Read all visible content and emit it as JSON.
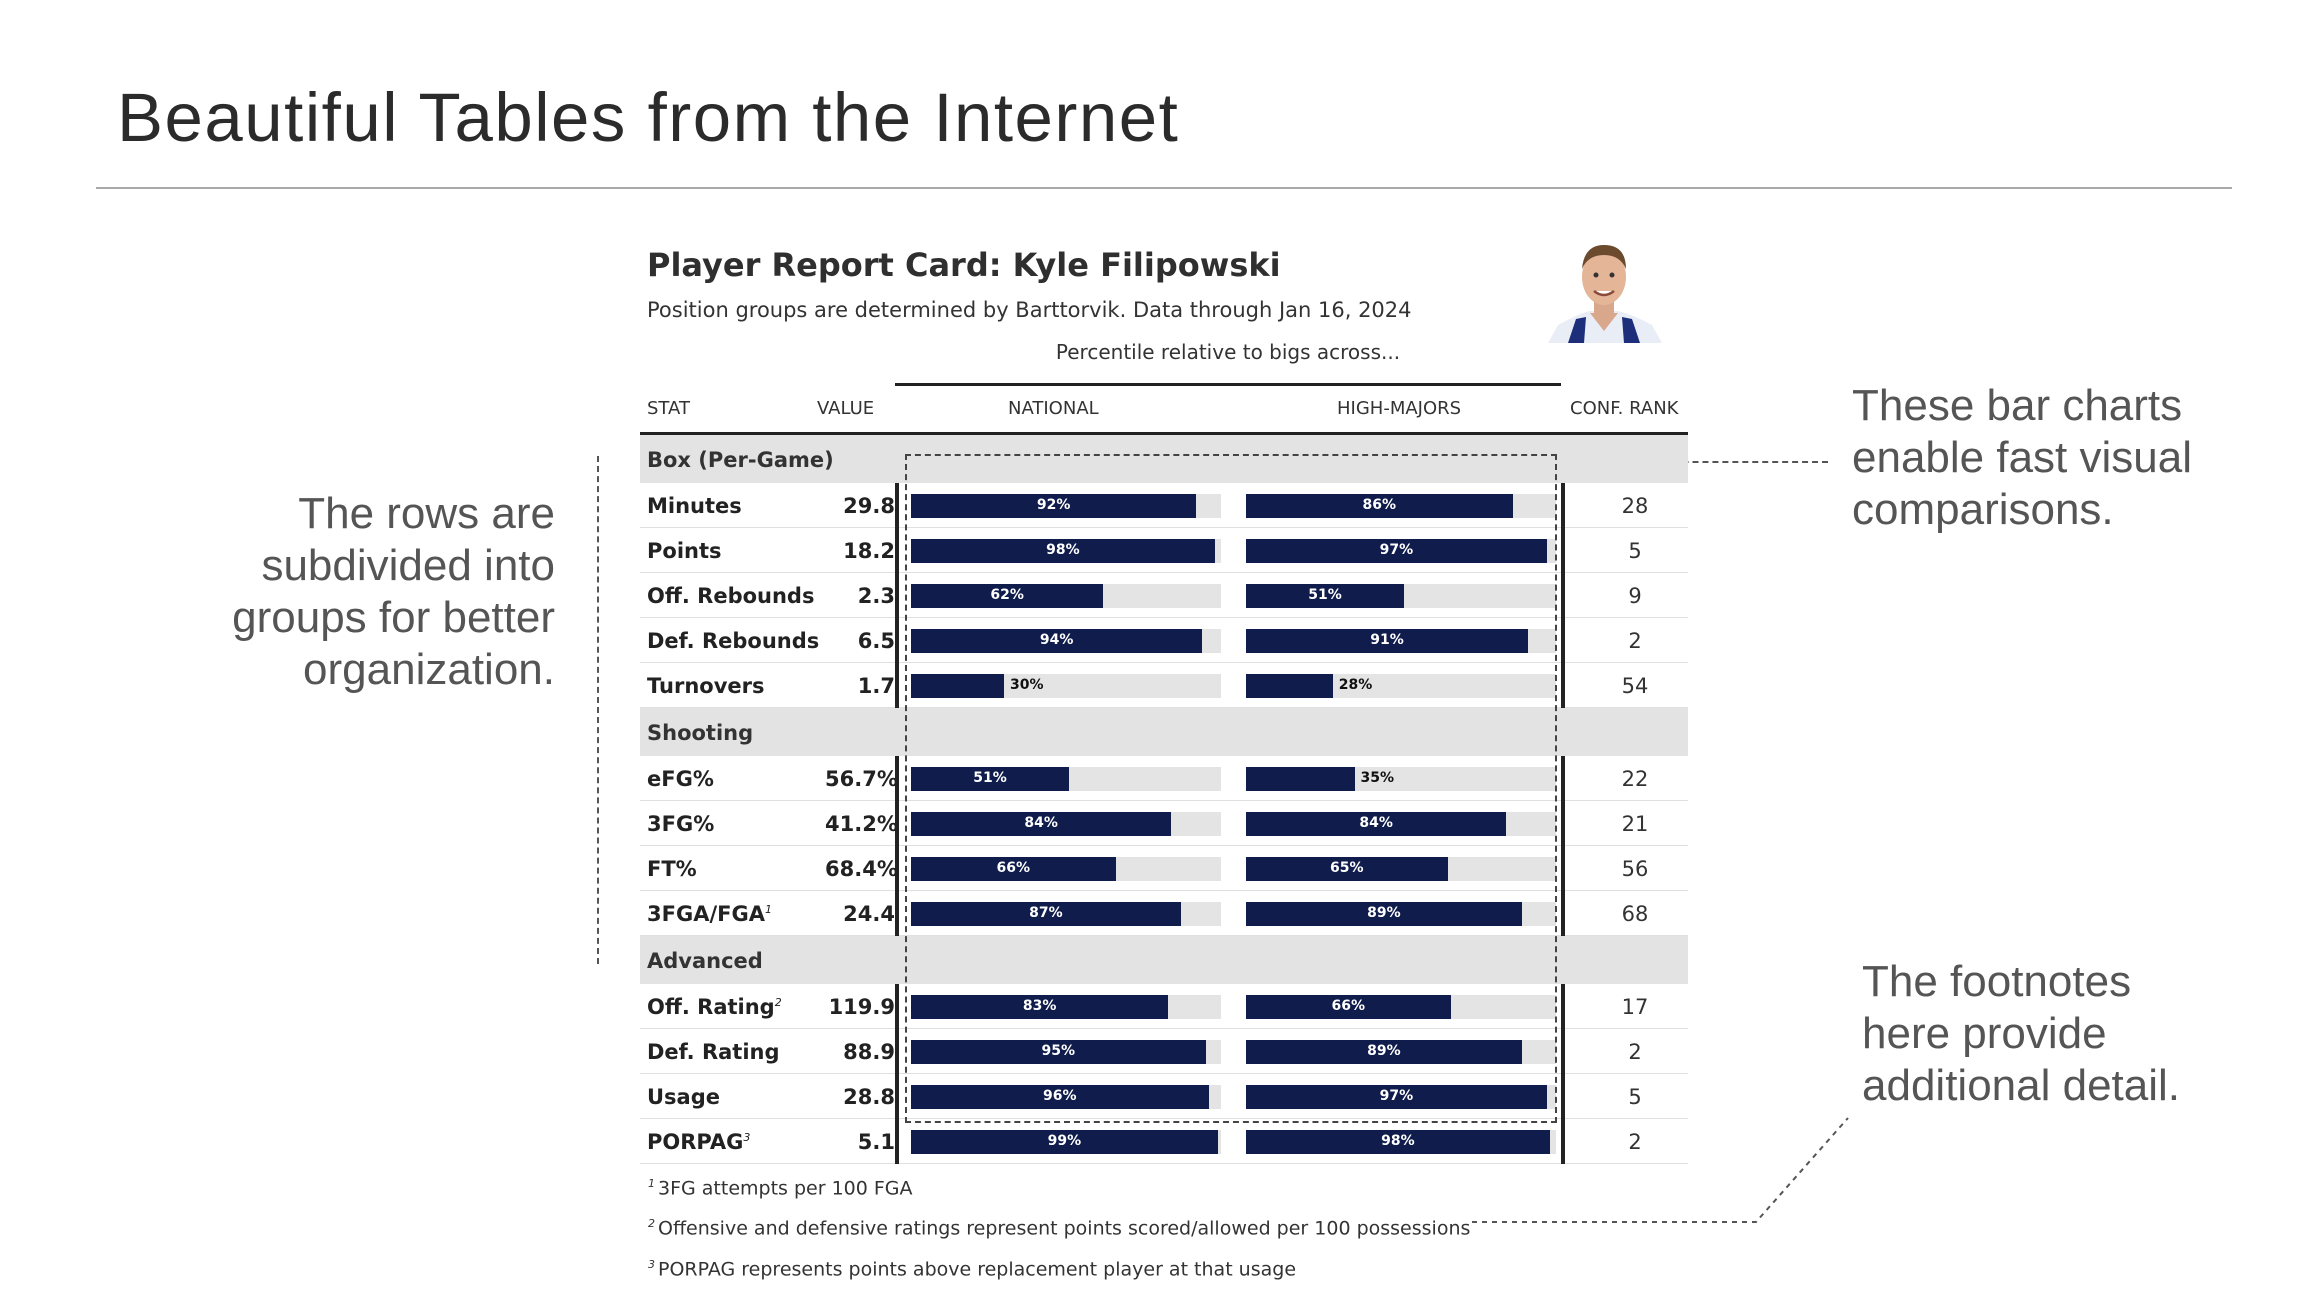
{
  "slide": {
    "title": "Beautiful Tables from the Internet"
  },
  "annotations": {
    "rows": [
      "The rows are",
      "subdivided into",
      "groups for better",
      "organization."
    ],
    "bars": [
      "These bar charts",
      "enable fast visual",
      "comparisons."
    ],
    "footnotes": [
      "The footnotes",
      "here provide",
      "additional detail."
    ]
  },
  "report": {
    "title": "Player Report Card: Kyle Filipowski",
    "subtitle": "Position groups are determined by Barttorvik. Data through Jan 16, 2024",
    "spanner": "Percentile relative to bigs across...",
    "headers": {
      "stat": "STAT",
      "value": "VALUE",
      "national": "NATIONAL",
      "high_majors": "HIGH-MAJORS",
      "conf_rank": "CONF. RANK"
    },
    "groups": [
      {
        "name": "Box (Per-Game)",
        "rows": [
          {
            "stat": "Minutes",
            "sup": "",
            "value": "29.8",
            "national": 92,
            "high_majors": 86,
            "conf_rank": "28"
          },
          {
            "stat": "Points",
            "sup": "",
            "value": "18.2",
            "national": 98,
            "high_majors": 97,
            "conf_rank": "5"
          },
          {
            "stat": "Off. Rebounds",
            "sup": "",
            "value": "2.3",
            "national": 62,
            "high_majors": 51,
            "conf_rank": "9"
          },
          {
            "stat": "Def. Rebounds",
            "sup": "",
            "value": "6.5",
            "national": 94,
            "high_majors": 91,
            "conf_rank": "2"
          },
          {
            "stat": "Turnovers",
            "sup": "",
            "value": "1.7",
            "national": 30,
            "high_majors": 28,
            "conf_rank": "54"
          }
        ]
      },
      {
        "name": "Shooting",
        "rows": [
          {
            "stat": "eFG%",
            "sup": "",
            "value": "56.7%",
            "national": 51,
            "high_majors": 35,
            "conf_rank": "22"
          },
          {
            "stat": "3FG%",
            "sup": "",
            "value": "41.2%",
            "national": 84,
            "high_majors": 84,
            "conf_rank": "21"
          },
          {
            "stat": "FT%",
            "sup": "",
            "value": "68.4%",
            "national": 66,
            "high_majors": 65,
            "conf_rank": "56"
          },
          {
            "stat": "3FGA/FGA",
            "sup": "1",
            "value": "24.4",
            "national": 87,
            "high_majors": 89,
            "conf_rank": "68"
          }
        ]
      },
      {
        "name": "Advanced",
        "rows": [
          {
            "stat": "Off. Rating",
            "sup": "2",
            "value": "119.9",
            "national": 83,
            "high_majors": 66,
            "conf_rank": "17"
          },
          {
            "stat": "Def. Rating",
            "sup": "",
            "value": "88.9",
            "national": 95,
            "high_majors": 89,
            "conf_rank": "2"
          },
          {
            "stat": "Usage",
            "sup": "",
            "value": "28.8",
            "national": 96,
            "high_majors": 97,
            "conf_rank": "5"
          },
          {
            "stat": "PORPAG",
            "sup": "3",
            "value": "5.1",
            "national": 99,
            "high_majors": 98,
            "conf_rank": "2"
          }
        ]
      }
    ],
    "footnotes": [
      {
        "mark": "1",
        "text": "3FG attempts per 100 FGA"
      },
      {
        "mark": "2",
        "text": "Offensive and defensive ratings represent points scored/allowed per 100 possessions"
      },
      {
        "mark": "3",
        "text": "PORPAG represents points above replacement player at that usage"
      }
    ],
    "colors": {
      "bar_fill": "#0f1c4c",
      "bar_track": "#e4e4e4",
      "group_bg": "#e3e3e3"
    }
  }
}
